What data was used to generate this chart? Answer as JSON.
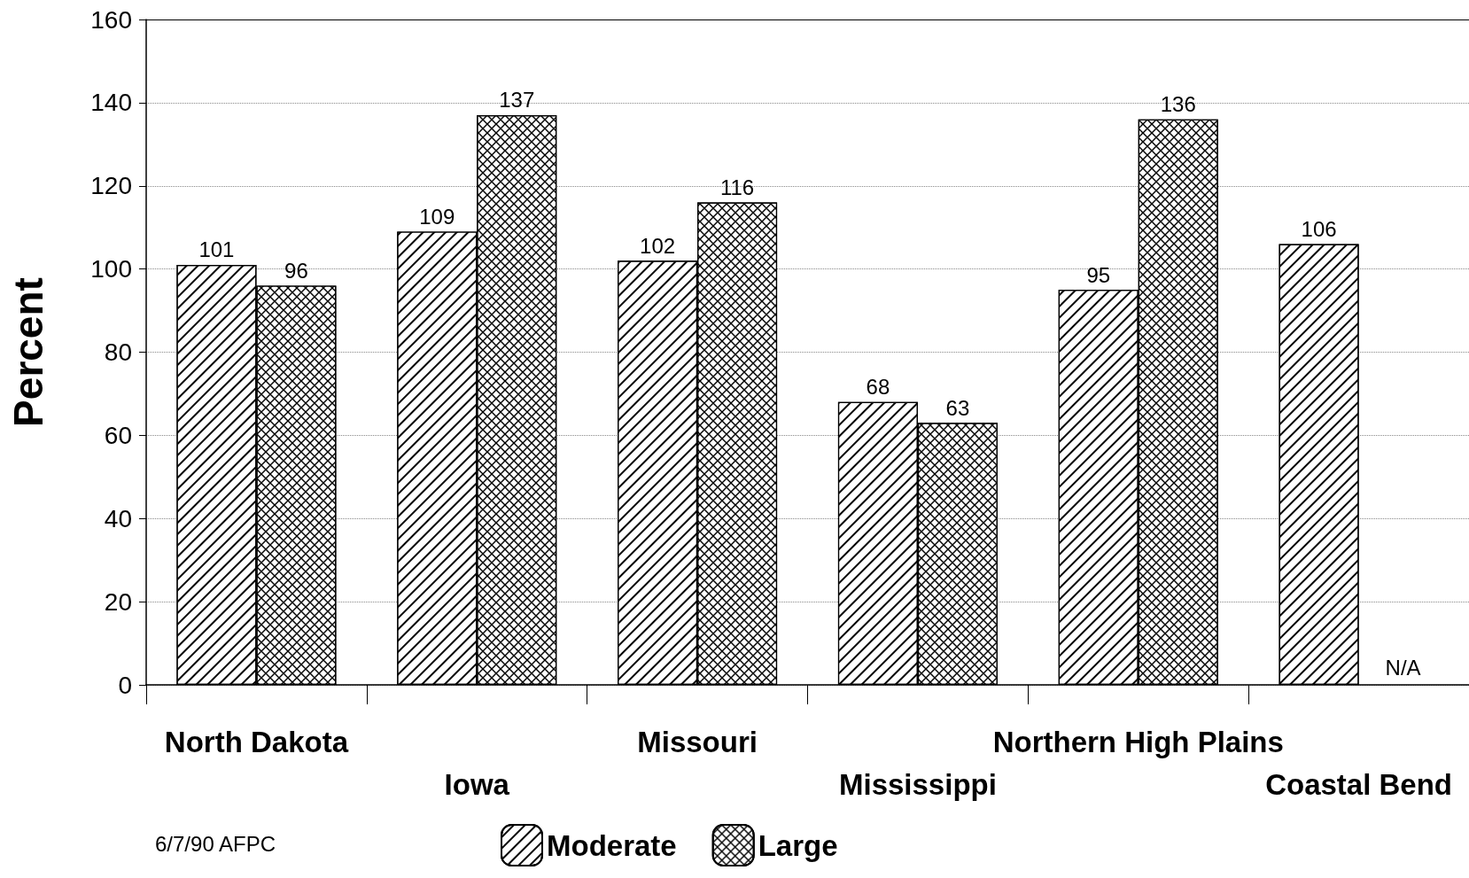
{
  "chart_data": {
    "type": "bar",
    "ylabel": "Percent",
    "categories": [
      "North Dakota",
      "Iowa",
      "Missouri",
      "Mississippi",
      "Northern High Plains",
      "Coastal Bend"
    ],
    "series": [
      {
        "name": "Moderate",
        "color": "#ffffff",
        "values": [
          101,
          109,
          102,
          68,
          95,
          106
        ]
      },
      {
        "name": "Large",
        "color": "#ffffff",
        "values": [
          96,
          137,
          116,
          63,
          136,
          null
        ]
      }
    ],
    "ylim": [
      0,
      160
    ],
    "yticks": [
      0,
      20,
      40,
      60,
      80,
      100,
      120,
      140,
      160
    ],
    "grid": "y",
    "legend": "bottom",
    "data_labels": true,
    "annotations": [
      {
        "text": "N/A",
        "x": "Coastal Bend",
        "y": 0
      },
      "6/7/90 AFPC"
    ]
  }
}
